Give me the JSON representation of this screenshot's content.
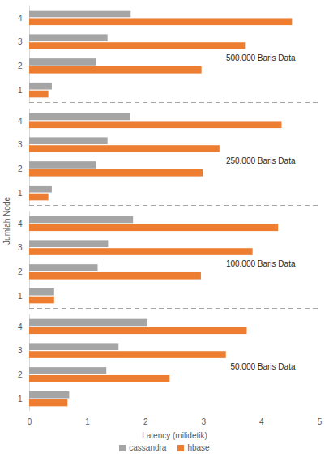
{
  "chart_data": {
    "type": "bar",
    "orientation": "horizontal",
    "x_label": "Latency (milidetik)",
    "y_label": "Jumlah Node",
    "categories": [
      "1",
      "2",
      "3",
      "4"
    ],
    "xlim": [
      0,
      5
    ],
    "xticks": [
      0,
      1,
      2,
      3,
      4,
      5
    ],
    "grid": false,
    "legend": "bottom",
    "panels": [
      {
        "annotation": "500.000 Baris Data",
        "series": [
          {
            "name": "cassandra",
            "color": "#a5a5a5",
            "values": [
              0.39,
              1.15,
              1.35,
              1.75
            ]
          },
          {
            "name": "hbase",
            "color": "#ed7d31",
            "values": [
              0.33,
              2.97,
              3.72,
              4.53
            ]
          }
        ]
      },
      {
        "annotation": "250.000 Baris Data",
        "series": [
          {
            "name": "cassandra",
            "color": "#a5a5a5",
            "values": [
              0.39,
              1.15,
              1.35,
              1.74
            ]
          },
          {
            "name": "hbase",
            "color": "#ed7d31",
            "values": [
              0.33,
              2.99,
              3.28,
              4.35
            ]
          }
        ]
      },
      {
        "annotation": "100.000 Baris Data",
        "series": [
          {
            "name": "cassandra",
            "color": "#a5a5a5",
            "values": [
              0.43,
              1.18,
              1.36,
              1.79
            ]
          },
          {
            "name": "hbase",
            "color": "#ed7d31",
            "values": [
              0.43,
              2.96,
              3.85,
              4.29
            ]
          }
        ]
      },
      {
        "annotation": "50.000 Baris Data",
        "series": [
          {
            "name": "cassandra",
            "color": "#a5a5a5",
            "values": [
              0.69,
              1.33,
              1.54,
              2.04
            ]
          },
          {
            "name": "hbase",
            "color": "#ed7d31",
            "values": [
              0.66,
              2.42,
              3.39,
              3.75
            ]
          }
        ]
      }
    ]
  }
}
